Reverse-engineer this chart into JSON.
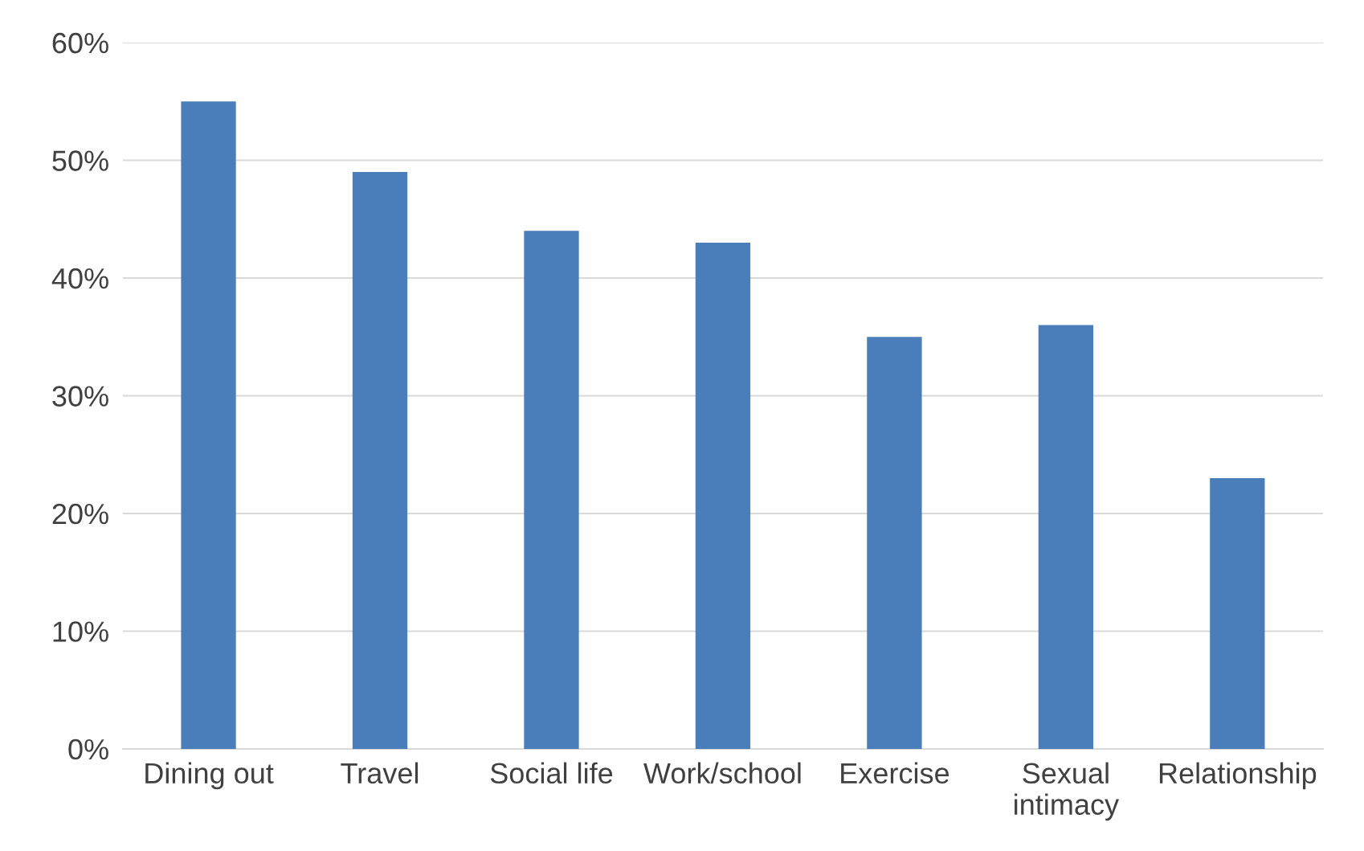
{
  "chart_data": {
    "type": "bar",
    "categories": [
      "Dining out",
      "Travel",
      "Social life",
      "Work/school",
      "Exercise",
      "Sexual\nintimacy",
      "Relationship"
    ],
    "values": [
      55,
      49,
      44,
      43,
      35,
      36,
      23
    ],
    "color": "#4a7ebb",
    "ylim": [
      0,
      60
    ],
    "yticks": [
      {
        "value": 0,
        "label": "0%"
      },
      {
        "value": 10,
        "label": "10%"
      },
      {
        "value": 20,
        "label": "20%"
      },
      {
        "value": 30,
        "label": "30%"
      },
      {
        "value": 40,
        "label": "40%"
      },
      {
        "value": 50,
        "label": "50%"
      },
      {
        "value": 60,
        "label": "60%"
      }
    ],
    "grid": "y",
    "legend": false
  }
}
